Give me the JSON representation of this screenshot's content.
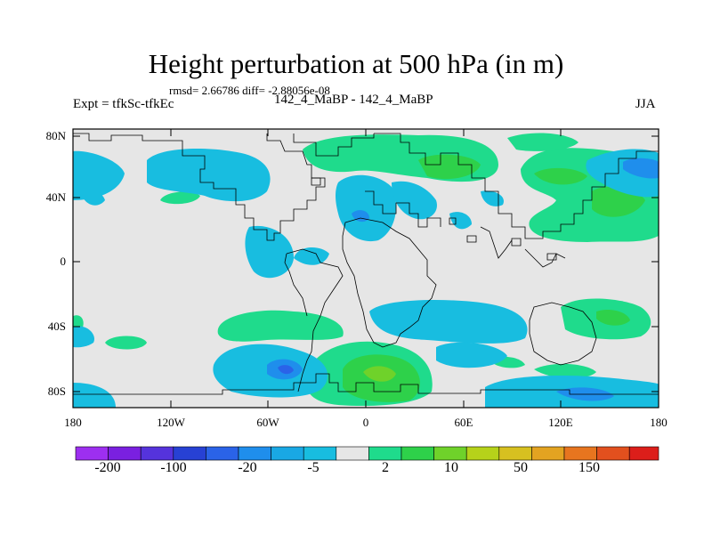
{
  "title": "Height perturbation at 500 hPa (in m)",
  "stats_text": "rmsd= 2.66786 diff= -2.88056e-08",
  "expt_label": "Expt = tfkSc-tfkEc",
  "cases_label": "142_4_MaBP - 142_4_MaBP",
  "season": "JJA",
  "y_axis": {
    "ticks": [
      "80N",
      "40N",
      "0",
      "40S",
      "80S"
    ],
    "values": [
      80,
      40,
      0,
      -40,
      -80
    ]
  },
  "x_axis": {
    "ticks": [
      "180",
      "120W",
      "60W",
      "0",
      "60E",
      "120E",
      "180"
    ],
    "values": [
      -180,
      -120,
      -60,
      0,
      60,
      120,
      180
    ]
  },
  "colorbar": {
    "colors": [
      "#9d2ff0",
      "#7a20e0",
      "#5533dc",
      "#2741d4",
      "#2a63e8",
      "#1f8eec",
      "#19a8e4",
      "#18bde0",
      "#e6e6e6",
      "#1fdb8c",
      "#2ed14a",
      "#6fd22a",
      "#b6d21a",
      "#d7c020",
      "#e3a321",
      "#e7751f",
      "#e2501e",
      "#dc1e1a"
    ],
    "labels": [
      "-200",
      "-100",
      "-20",
      "-5",
      "2",
      "10",
      "50",
      "150"
    ]
  },
  "colors": {
    "neutral": "#e6e6e6",
    "light_green": "#1fdb8c",
    "green": "#2ed14a",
    "yellow_green": "#6fd22a",
    "cyan": "#18bde0",
    "light_blue": "#1f8eec",
    "blue": "#2a63e8"
  }
}
